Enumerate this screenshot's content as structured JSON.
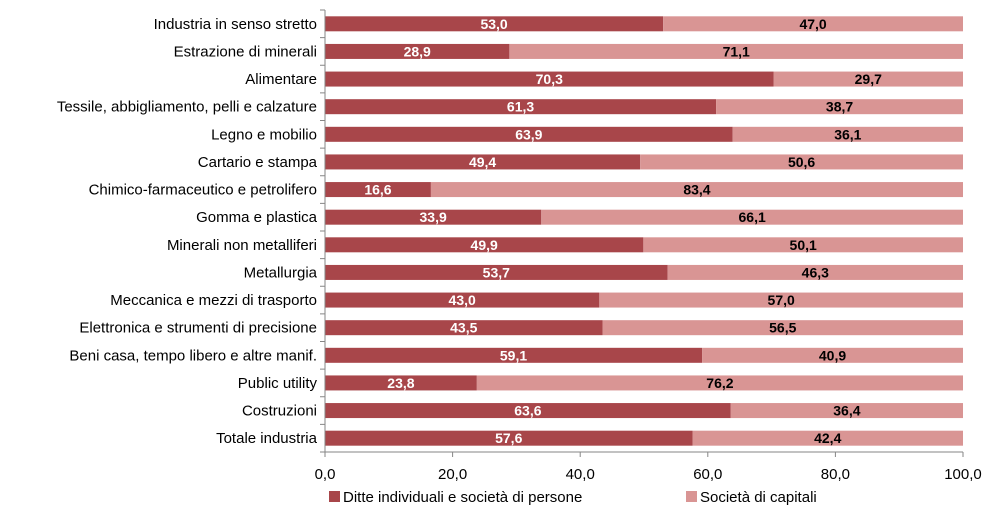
{
  "chart_data": {
    "type": "bar",
    "orientation": "horizontal",
    "stacked": true,
    "categories": [
      "Industria in senso stretto",
      "Estrazione di minerali",
      "Alimentare",
      "Tessile, abbigliamento, pelli e calzature",
      "Legno e mobilio",
      "Cartario e stampa",
      "Chimico-farmaceutico e petrolifero",
      "Gomma e plastica",
      "Minerali non metalliferi",
      "Metallurgia",
      "Meccanica e mezzi di trasporto",
      "Elettronica e strumenti di precisione",
      "Beni casa, tempo libero e altre manif.",
      "Public utility",
      "Costruzioni",
      "Totale industria"
    ],
    "series": [
      {
        "name": "Ditte individuali e società di persone",
        "color": "#a8464a",
        "values": [
          53.0,
          28.9,
          70.3,
          61.3,
          63.9,
          49.4,
          16.6,
          33.9,
          49.9,
          53.7,
          43.0,
          43.5,
          59.1,
          23.8,
          63.6,
          57.6
        ],
        "labels": [
          "53,0",
          "28,9",
          "70,3",
          "61,3",
          "63,9",
          "49,4",
          "16,6",
          "33,9",
          "49,9",
          "53,7",
          "43,0",
          "43,5",
          "59,1",
          "23,8",
          "63,6",
          "57,6"
        ]
      },
      {
        "name": "Società di capitali",
        "color": "#d99594",
        "values": [
          47.0,
          71.1,
          29.7,
          38.7,
          36.1,
          50.6,
          83.4,
          66.1,
          50.1,
          46.3,
          57.0,
          56.5,
          40.9,
          76.2,
          36.4,
          42.4
        ],
        "labels": [
          "47,0",
          "71,1",
          "29,7",
          "38,7",
          "36,1",
          "50,6",
          "83,4",
          "66,1",
          "50,1",
          "46,3",
          "57,0",
          "56,5",
          "40,9",
          "76,2",
          "36,4",
          "42,4"
        ]
      }
    ],
    "xlim": [
      0,
      100
    ],
    "xticks": [
      0,
      20,
      40,
      60,
      80,
      100
    ],
    "xtick_labels": [
      "0,0",
      "20,0",
      "40,0",
      "60,0",
      "80,0",
      "100,0"
    ],
    "grid": false,
    "legend": "bottom"
  }
}
